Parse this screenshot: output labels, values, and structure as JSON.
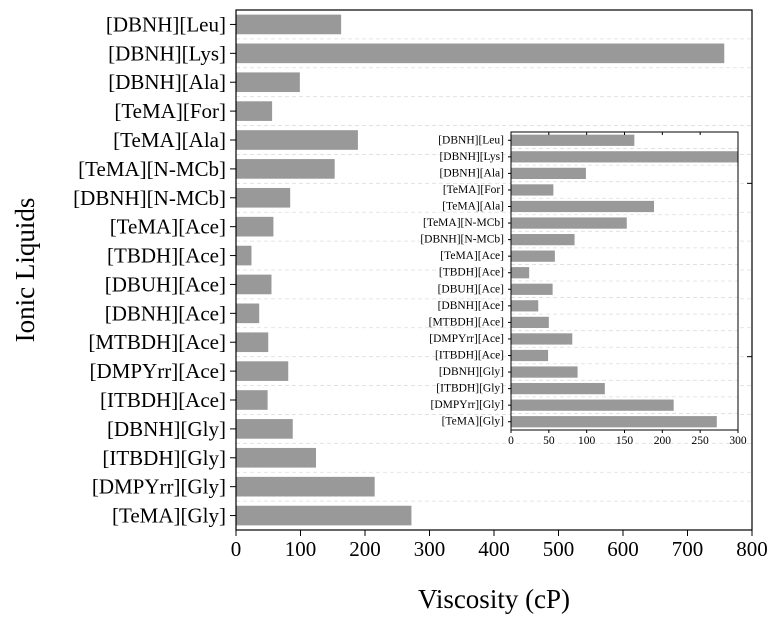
{
  "chart_data": [
    {
      "type": "bar",
      "orientation": "horizontal",
      "title": "",
      "xlabel": "Viscosity (cP)",
      "ylabel": "Ionic Liquids",
      "xlim": [
        0,
        800
      ],
      "xticks": [
        0,
        100,
        200,
        300,
        400,
        500,
        600,
        700,
        800
      ],
      "grid": "horizontal dashed",
      "bar_color": "#999999",
      "categories": [
        "[DBNH][Leu]",
        "[DBNH][Lys]",
        "[DBNH][Ala]",
        "[TeMA][For]",
        "[TeMA][Ala]",
        "[TeMA][N-MCb]",
        "[DBNH][N-MCb]",
        "[TeMA][Ace]",
        "[TBDH][Ace]",
        "[DBUH][Ace]",
        "[DBNH][Ace]",
        "[MTBDH][Ace]",
        "[DMPYrr][Ace]",
        "[ITBDH][Ace]",
        "[DBNH][Gly]",
        "[ITBDH][Gly]",
        "[DMPYrr][Gly]",
        "[TeMA][Gly]"
      ],
      "values": [
        163,
        757,
        99,
        56,
        189,
        153,
        84,
        58,
        24,
        55,
        36,
        50,
        81,
        49,
        88,
        124,
        215,
        272
      ]
    },
    {
      "type": "bar",
      "orientation": "horizontal",
      "title": "",
      "xlabel": "",
      "ylabel": "",
      "xlim": [
        0,
        300
      ],
      "xticks": [
        0,
        50,
        100,
        150,
        200,
        250,
        300
      ],
      "grid": "horizontal dashed",
      "bar_color": "#999999",
      "categories": [
        "[DBNH][Leu]",
        "[DBNH][Lys]",
        "[DBNH][Ala]",
        "[TeMA][For]",
        "[TeMA][Ala]",
        "[TeMA][N-MCb]",
        "[DBNH][N-MCb]",
        "[TeMA][Ace]",
        "[TBDH][Ace]",
        "[DBUH][Ace]",
        "[DBNH][Ace]",
        "[MTBDH][Ace]",
        "[DMPYrr][Ace]",
        "[ITBDH][Ace]",
        "[DBNH][Gly]",
        "[ITBDH][Gly]",
        "[DMPYrr][Gly]",
        "[TeMA][Gly]"
      ],
      "values": [
        163,
        300,
        99,
        56,
        189,
        153,
        84,
        58,
        24,
        55,
        36,
        50,
        81,
        49,
        88,
        124,
        215,
        272
      ]
    }
  ]
}
